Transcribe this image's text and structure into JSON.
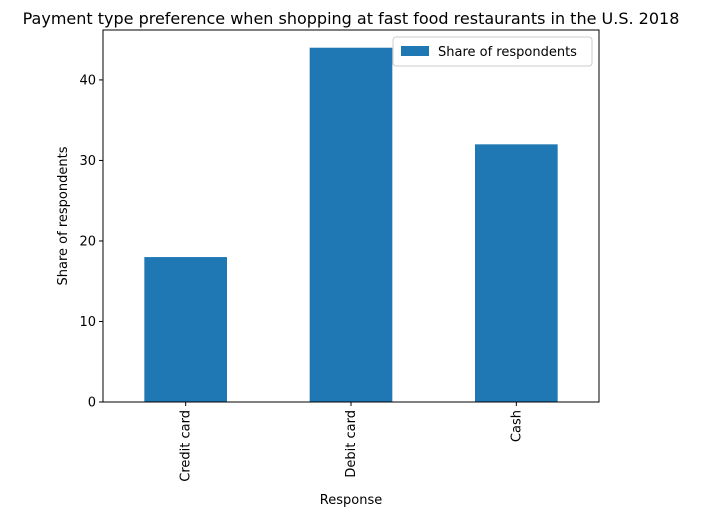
{
  "chart_data": {
    "type": "bar",
    "title": "Payment type preference when shopping at fast food restaurants in the U.S. 2018",
    "xlabel": "Response",
    "ylabel": "Share of respondents",
    "categories": [
      "Credit card",
      "Debit card",
      "Cash"
    ],
    "series": [
      {
        "name": "Share of respondents",
        "values": [
          18,
          44,
          32
        ],
        "color": "#1f77b4"
      }
    ],
    "yticks": [
      0,
      10,
      20,
      30,
      40
    ],
    "ylim": [
      0,
      46.2
    ],
    "grid": false,
    "legend_position": "top-right"
  }
}
